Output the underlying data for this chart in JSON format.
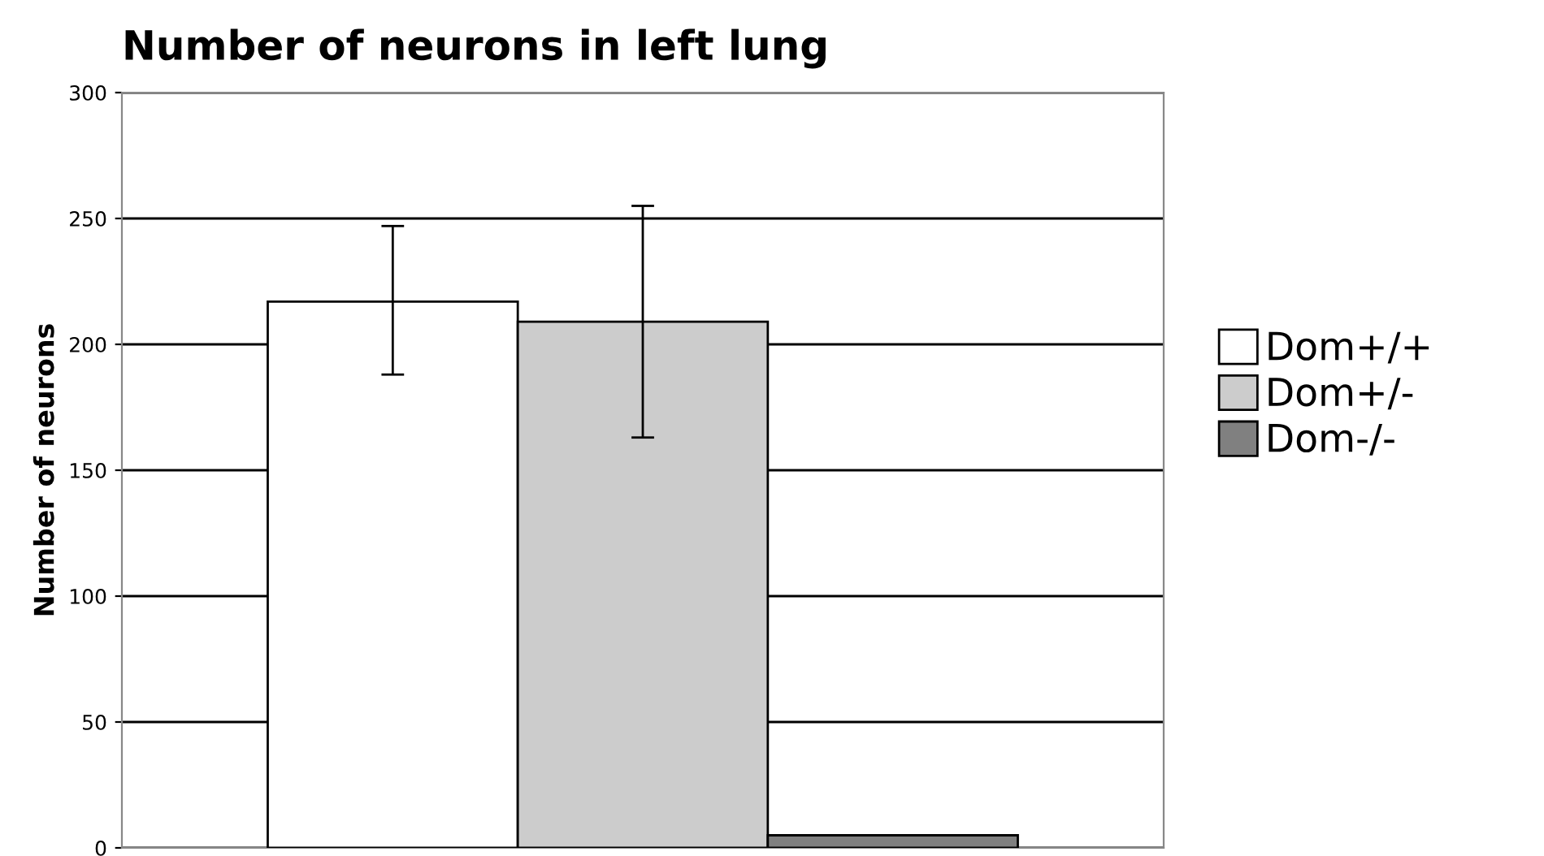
{
  "chart_data": {
    "type": "bar",
    "title": "Number of neurons in left lung",
    "ylabel": "Number of neurons",
    "categories": [
      null
    ],
    "series": [
      {
        "name": "Dom+/+",
        "color": "#ffffff",
        "values": [
          217
        ],
        "errors": [
          [
            188,
            247
          ]
        ]
      },
      {
        "name": "Dom+/-",
        "color": "#cccccc",
        "values": [
          209
        ],
        "errors": [
          [
            163,
            255
          ]
        ]
      },
      {
        "name": "Dom-/-",
        "color": "#808080",
        "values": [
          5
        ],
        "errors": [
          null
        ]
      }
    ],
    "ylim": [
      0,
      300
    ],
    "yticks": [
      0,
      50,
      100,
      150,
      200,
      250,
      300
    ],
    "grid": "y",
    "legend": "right"
  }
}
